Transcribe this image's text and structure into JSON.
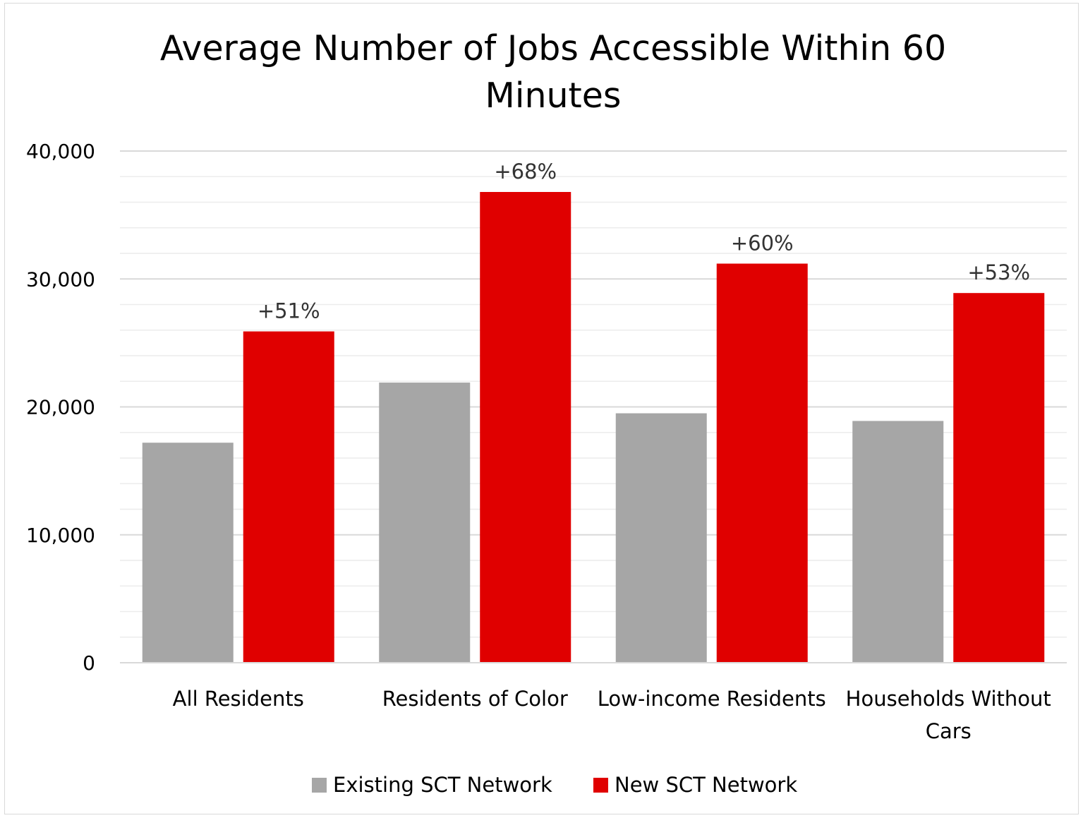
{
  "chart_data": {
    "type": "bar",
    "title": "Average Number of Jobs Accessible Within 60 Minutes",
    "title_lines": [
      "Average Number of Jobs Accessible Within 60",
      "Minutes"
    ],
    "xlabel": "",
    "ylabel": "",
    "ylim": [
      0,
      40000
    ],
    "yticks": [
      0,
      10000,
      20000,
      30000,
      40000
    ],
    "ytick_labels": [
      "0",
      "10,000",
      "20,000",
      "30,000",
      "40,000"
    ],
    "minor_gridlines": true,
    "grid": true,
    "legend_position": "bottom",
    "categories": [
      "All Residents",
      "Residents of Color",
      "Low-income Residents",
      "Households Without Cars"
    ],
    "category_label_lines": [
      [
        "All Residents"
      ],
      [
        "Residents of Color"
      ],
      [
        "Low-income Residents"
      ],
      [
        "Households Without",
        "Cars"
      ]
    ],
    "series": [
      {
        "name": "Existing SCT Network",
        "color": "#a6a6a6",
        "values": [
          17200,
          21900,
          19500,
          18900
        ]
      },
      {
        "name": "New SCT Network",
        "color": "#e00000",
        "values": [
          25900,
          36800,
          31200,
          28900
        ]
      }
    ],
    "data_labels": [
      "+51%",
      "+68%",
      "+60%",
      "+53%"
    ]
  }
}
